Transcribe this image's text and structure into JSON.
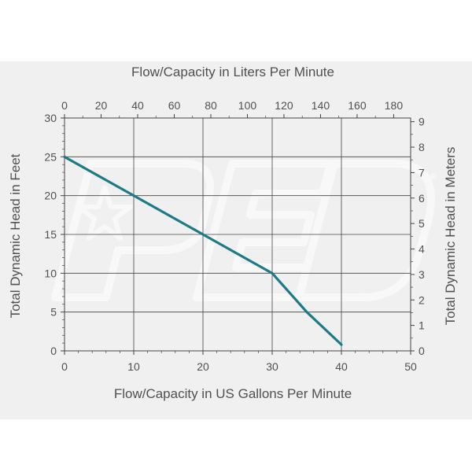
{
  "colors": {
    "series": "#1e7b86",
    "grid": "#444444",
    "text": "#505050",
    "panel": "#f0f0f0",
    "watermark": "#ffffff"
  },
  "chart_data": {
    "type": "line",
    "title": "",
    "xlabel": "Flow/Capacity in US Gallons Per Minute",
    "ylabel": "Total Dynamic Head in Feet",
    "x2label": "Flow/Capacity in Liters Per Minute",
    "y2label": "Total Dynamic Head in Meters",
    "xlim": [
      0,
      50
    ],
    "ylim": [
      0,
      30
    ],
    "x2lim": [
      0,
      189.27
    ],
    "y2lim": [
      0,
      9.144
    ],
    "xticks": [
      "0",
      "10",
      "20",
      "30",
      "40",
      "50"
    ],
    "yticks": [
      "0",
      "5",
      "10",
      "15",
      "20",
      "25",
      "30"
    ],
    "x2ticks": [
      "0",
      "20",
      "40",
      "60",
      "80",
      "100",
      "120",
      "140",
      "160",
      "180"
    ],
    "y2ticks": [
      "0",
      "1",
      "2",
      "3",
      "4",
      "5",
      "6",
      "7",
      "8",
      "9"
    ],
    "grid": true,
    "legend": "none",
    "series": [
      {
        "x": [
          0,
          10,
          20,
          30,
          35,
          40
        ],
        "y": [
          25,
          20,
          15,
          10,
          5,
          0.8
        ]
      }
    ]
  }
}
